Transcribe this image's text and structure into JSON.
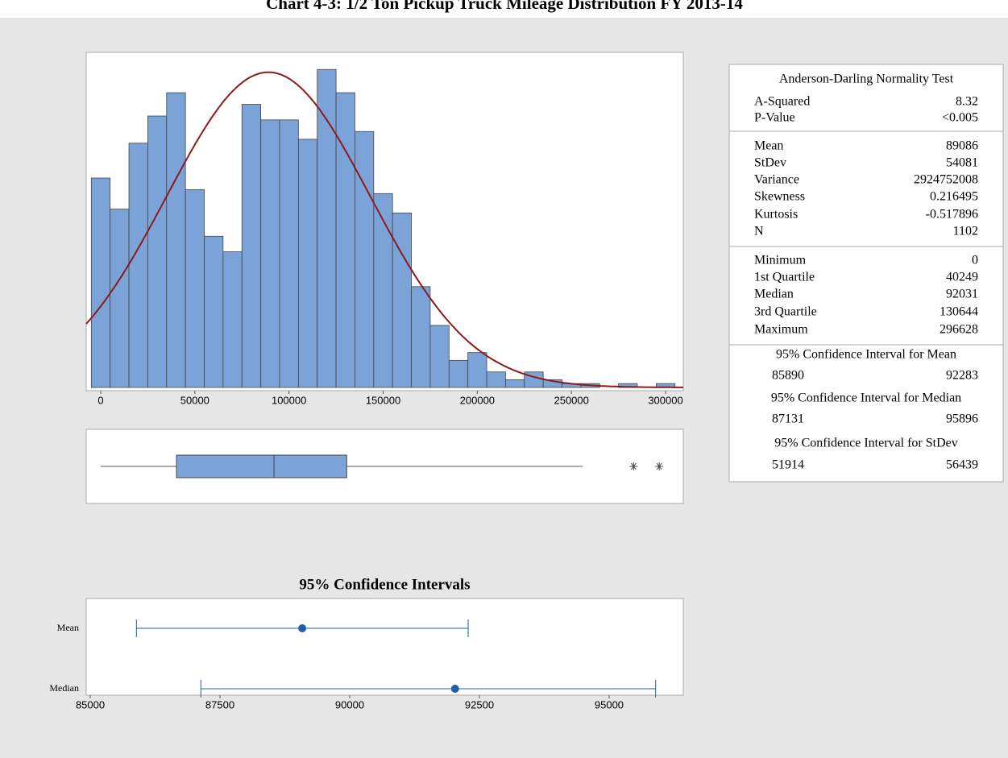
{
  "title": "Chart 4-3: 1/2 Ton Pickup Truck Mileage Distribution FY 2013-14",
  "chart_data": [
    {
      "type": "histogram",
      "color": "#7ba3d8",
      "curve_color": "#8b1a1a",
      "bins": [
        -5000,
        5000,
        15000,
        25000,
        35000,
        45000,
        55000,
        65000,
        75000,
        85000,
        95000,
        105000,
        115000,
        125000,
        135000,
        145000,
        155000,
        165000,
        175000,
        185000,
        195000,
        205000,
        215000,
        225000,
        235000,
        245000,
        255000,
        265000,
        275000,
        285000,
        295000,
        305000
      ],
      "counts": [
        54,
        46,
        63,
        70,
        76,
        51,
        39,
        35,
        73,
        69,
        69,
        64,
        82,
        76,
        66,
        50,
        45,
        26,
        16,
        7,
        9,
        4,
        2,
        4,
        2,
        1,
        1,
        0,
        1,
        0,
        1
      ],
      "xlim": [
        -7700,
        309400
      ],
      "xticks": [
        0,
        50000,
        100000,
        150000,
        200000,
        250000,
        300000
      ],
      "ylim": [
        0,
        86
      ]
    },
    {
      "type": "box",
      "color": "#7ba3d8",
      "whisker_low": 0,
      "q1": 40249,
      "median": 92031,
      "q3": 130644,
      "whisker_high": 256000,
      "outliers": [
        283000,
        296628
      ],
      "xlim": [
        -7700,
        309400
      ]
    },
    {
      "type": "interval",
      "title": "95% Confidence Intervals",
      "color": "#1f5fa8",
      "categories": [
        "Mean",
        "Median"
      ],
      "estimates": [
        89086,
        92031
      ],
      "lower": [
        85890,
        87131
      ],
      "upper": [
        92283,
        95896
      ],
      "xlim": [
        84922,
        96429
      ],
      "xticks": [
        85000,
        87500,
        90000,
        92500,
        95000
      ]
    }
  ],
  "summary": {
    "sections": [
      {
        "title": "Anderson-Darling Normality Test",
        "rows": [
          [
            "A-Squared",
            8.32
          ],
          [
            "P-Value",
            "<0.005"
          ]
        ]
      },
      {
        "rows": [
          [
            "Mean",
            89086
          ],
          [
            "StDev",
            54081
          ],
          [
            "Variance",
            2924752008
          ],
          [
            "Skewness",
            0.216495
          ],
          [
            "Kurtosis",
            -0.517896
          ],
          [
            "N",
            1102
          ]
        ]
      },
      {
        "rows": [
          [
            "Minimum",
            0
          ],
          [
            "1st Quartile",
            40249
          ],
          [
            "Median",
            92031
          ],
          [
            "3rd Quartile",
            130644
          ],
          [
            "Maximum",
            296628
          ]
        ]
      }
    ],
    "intervals": [
      {
        "title": "95% Confidence Interval for Mean",
        "values": [
          85890,
          92283
        ]
      },
      {
        "title": "95% Confidence Interval for Median",
        "values": [
          87131,
          95896
        ]
      },
      {
        "title": "95% Confidence Interval for StDev",
        "values": [
          51914,
          56439
        ]
      }
    ]
  }
}
